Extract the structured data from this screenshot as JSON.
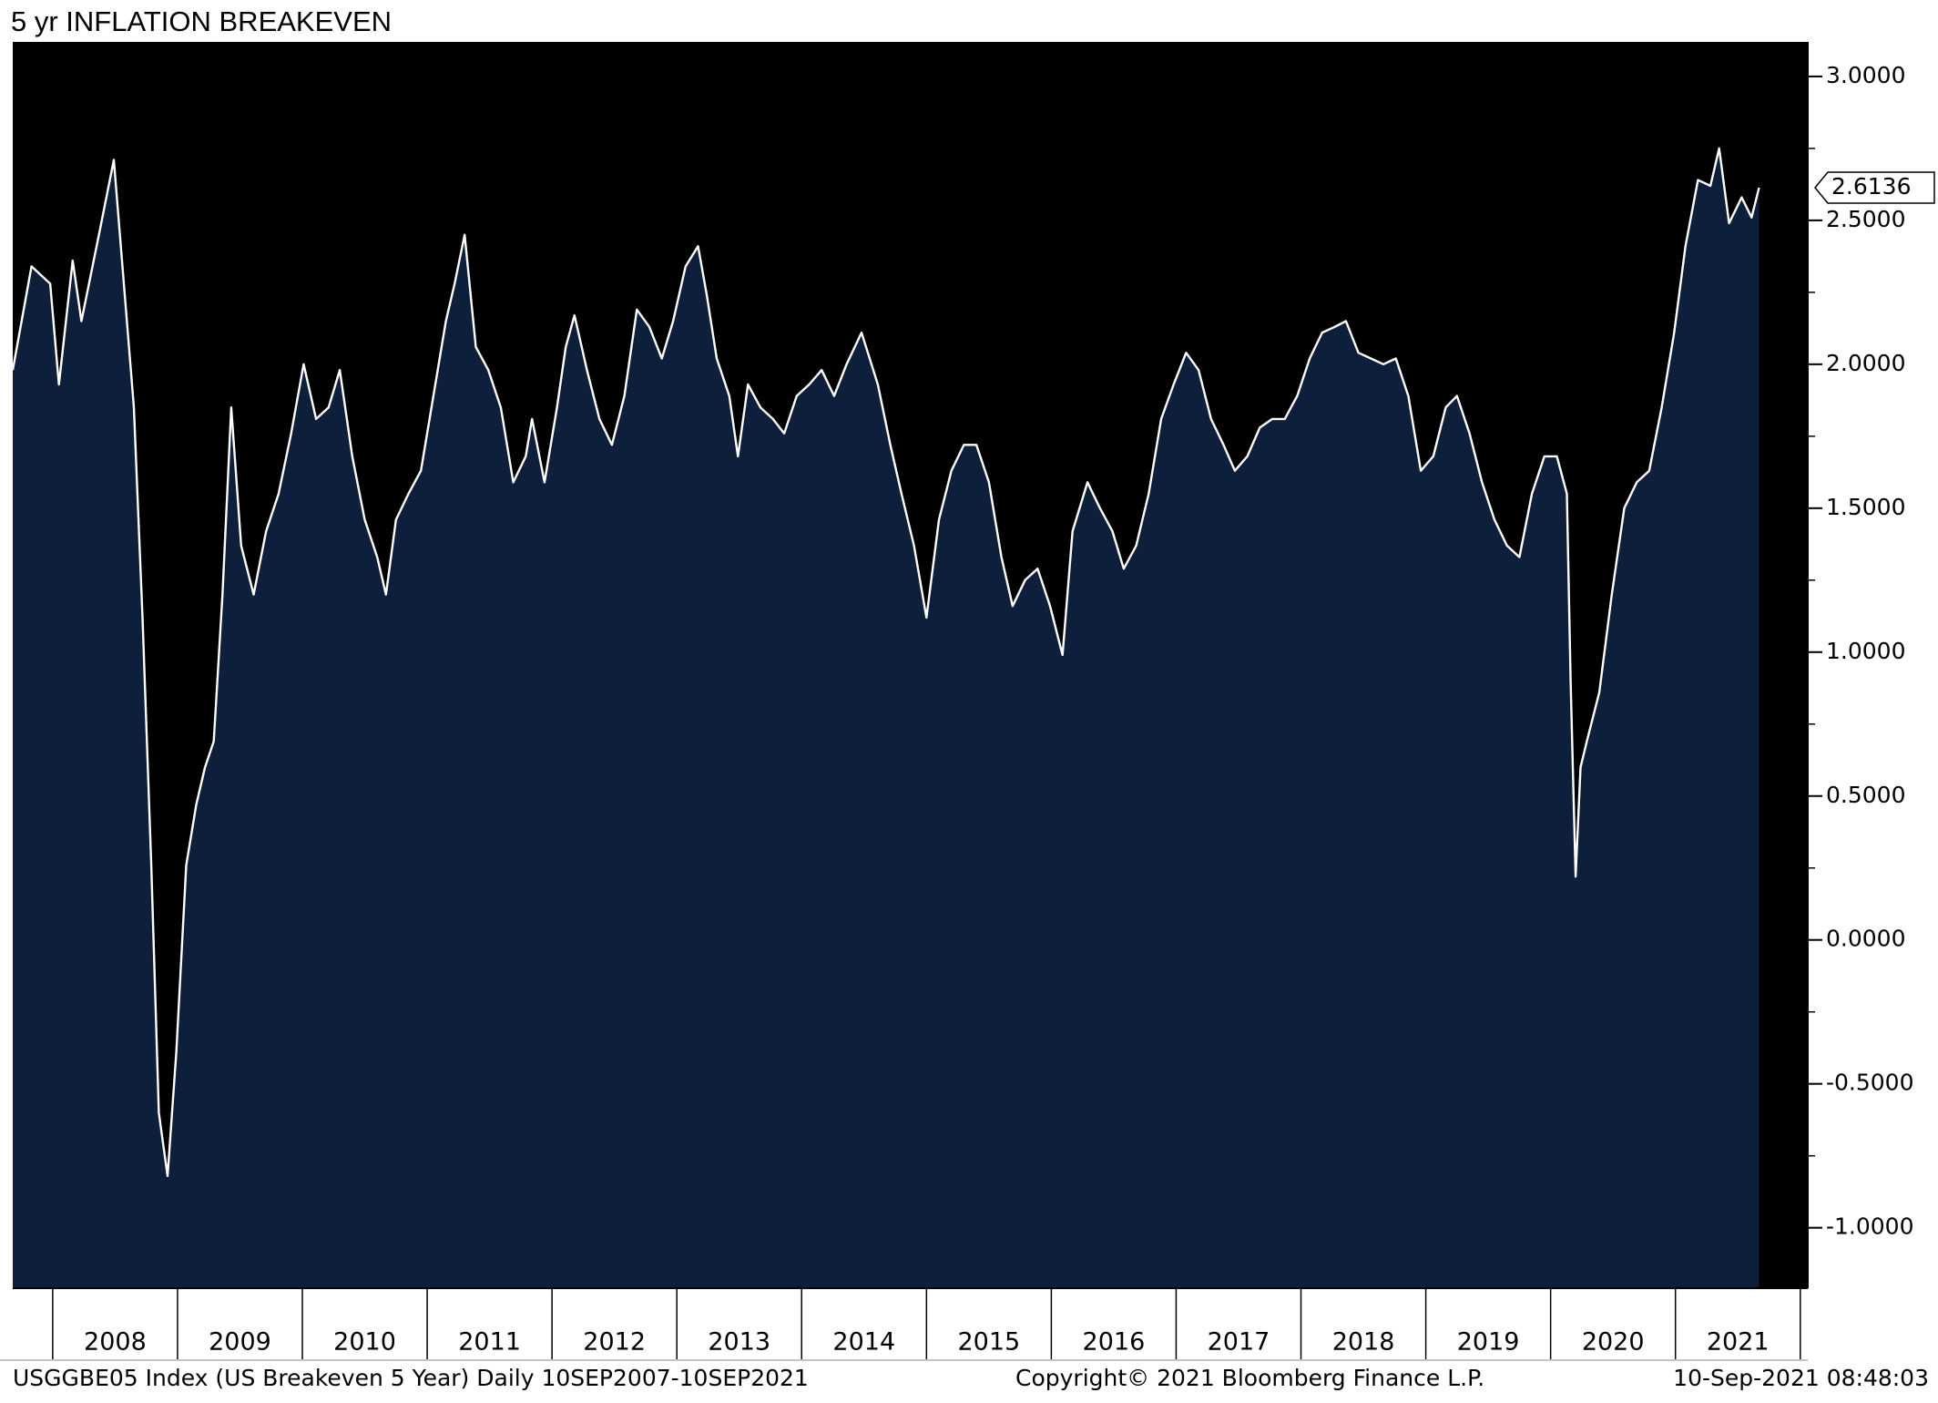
{
  "chart_data": {
    "type": "area",
    "title": "5 yr INFLATION BREAKEVEN",
    "line_color": "#ffffff",
    "fill_color": "#0d1f3a",
    "background": "#000000",
    "x": [
      2007.68,
      2007.83,
      2007.98,
      2008.05,
      2008.16,
      2008.23,
      2008.38,
      2008.49,
      2008.57,
      2008.65,
      2008.72,
      2008.79,
      2008.85,
      2008.92,
      2008.99,
      2009.07,
      2009.15,
      2009.22,
      2009.29,
      2009.36,
      2009.43,
      2009.51,
      2009.61,
      2009.71,
      2009.81,
      2009.91,
      2010.01,
      2010.11,
      2010.21,
      2010.3,
      2010.4,
      2010.5,
      2010.6,
      2010.67,
      2010.75,
      2010.85,
      2010.95,
      2011.05,
      2011.15,
      2011.22,
      2011.3,
      2011.39,
      2011.49,
      2011.59,
      2011.69,
      2011.79,
      2011.84,
      2011.94,
      2012.04,
      2012.11,
      2012.18,
      2012.28,
      2012.38,
      2012.48,
      2012.58,
      2012.68,
      2012.78,
      2012.88,
      2012.97,
      2013.07,
      2013.17,
      2013.24,
      2013.32,
      2013.42,
      2013.49,
      2013.57,
      2013.67,
      2013.77,
      2013.86,
      2013.96,
      2014.06,
      2014.16,
      2014.26,
      2014.36,
      2014.48,
      2014.61,
      2014.71,
      2014.8,
      2014.9,
      2015.0,
      2015.1,
      2015.2,
      2015.3,
      2015.4,
      2015.5,
      2015.6,
      2015.69,
      2015.79,
      2015.89,
      2015.99,
      2016.09,
      2016.17,
      2016.29,
      2016.39,
      2016.49,
      2016.58,
      2016.68,
      2016.78,
      2016.88,
      2016.98,
      2017.08,
      2017.18,
      2017.28,
      2017.38,
      2017.47,
      2017.57,
      2017.67,
      2017.77,
      2017.87,
      2017.97,
      2018.07,
      2018.17,
      2018.27,
      2018.36,
      2018.46,
      2018.56,
      2018.66,
      2018.76,
      2018.86,
      2018.96,
      2019.06,
      2019.16,
      2019.25,
      2019.35,
      2019.45,
      2019.55,
      2019.65,
      2019.75,
      2019.85,
      2019.95,
      2020.05,
      2020.13,
      2020.16,
      2020.2,
      2020.24,
      2020.29,
      2020.39,
      2020.49,
      2020.59,
      2020.69,
      2020.79,
      2020.89,
      2020.99,
      2021.08,
      2021.18,
      2021.28,
      2021.35,
      2021.43,
      2021.53,
      2021.61,
      2021.67
    ],
    "values": [
      1.98,
      2.34,
      2.28,
      1.93,
      2.36,
      2.15,
      2.47,
      2.71,
      2.28,
      1.85,
      1.12,
      0.26,
      -0.6,
      -0.82,
      -0.39,
      0.26,
      0.47,
      0.6,
      0.69,
      1.2,
      1.85,
      1.37,
      1.2,
      1.42,
      1.55,
      1.76,
      2.0,
      1.81,
      1.85,
      1.98,
      1.68,
      1.46,
      1.33,
      1.2,
      1.46,
      1.55,
      1.63,
      1.89,
      2.15,
      2.28,
      2.45,
      2.06,
      1.98,
      1.85,
      1.59,
      1.68,
      1.81,
      1.59,
      1.85,
      2.06,
      2.17,
      1.98,
      1.81,
      1.72,
      1.89,
      2.19,
      2.13,
      2.02,
      2.15,
      2.34,
      2.41,
      2.24,
      2.02,
      1.89,
      1.68,
      1.93,
      1.85,
      1.81,
      1.76,
      1.89,
      1.93,
      1.98,
      1.89,
      2.0,
      2.11,
      1.93,
      1.72,
      1.55,
      1.37,
      1.12,
      1.46,
      1.63,
      1.72,
      1.72,
      1.59,
      1.33,
      1.16,
      1.25,
      1.29,
      1.16,
      0.99,
      1.42,
      1.59,
      1.5,
      1.42,
      1.29,
      1.37,
      1.55,
      1.81,
      1.93,
      2.04,
      1.98,
      1.81,
      1.72,
      1.63,
      1.68,
      1.78,
      1.81,
      1.81,
      1.89,
      2.02,
      2.11,
      2.13,
      2.15,
      2.04,
      2.02,
      2.0,
      2.02,
      1.89,
      1.63,
      1.68,
      1.85,
      1.89,
      1.76,
      1.59,
      1.46,
      1.37,
      1.33,
      1.55,
      1.68,
      1.68,
      1.55,
      0.9,
      0.22,
      0.6,
      0.69,
      0.86,
      1.2,
      1.5,
      1.59,
      1.63,
      1.85,
      2.11,
      2.41,
      2.64,
      2.62,
      2.75,
      2.49,
      2.58,
      2.51,
      2.6136
    ],
    "xlim": [
      2007.68,
      2022.06
    ],
    "x_dividers": [
      2008,
      2009,
      2010,
      2011,
      2012,
      2013,
      2014,
      2015,
      2016,
      2017,
      2018,
      2019,
      2020,
      2021,
      2022
    ],
    "xticks": [
      {
        "value": 2008.5,
        "label": "2008"
      },
      {
        "value": 2009.5,
        "label": "2009"
      },
      {
        "value": 2010.5,
        "label": "2010"
      },
      {
        "value": 2011.5,
        "label": "2011"
      },
      {
        "value": 2012.5,
        "label": "2012"
      },
      {
        "value": 2013.5,
        "label": "2013"
      },
      {
        "value": 2014.5,
        "label": "2014"
      },
      {
        "value": 2015.5,
        "label": "2015"
      },
      {
        "value": 2016.5,
        "label": "2016"
      },
      {
        "value": 2017.5,
        "label": "2017"
      },
      {
        "value": 2018.5,
        "label": "2018"
      },
      {
        "value": 2019.5,
        "label": "2019"
      },
      {
        "value": 2020.5,
        "label": "2020"
      },
      {
        "value": 2021.5,
        "label": "2021"
      }
    ],
    "ylim": [
      -1.21,
      3.12
    ],
    "yticks": [
      {
        "value": 3,
        "label": "3.0000"
      },
      {
        "value": 2.5,
        "label": "2.5000"
      },
      {
        "value": 2,
        "label": "2.0000"
      },
      {
        "value": 1.5,
        "label": "1.5000"
      },
      {
        "value": 1,
        "label": "1.0000"
      },
      {
        "value": 0.5,
        "label": "0.5000"
      },
      {
        "value": 0,
        "label": "0.0000"
      },
      {
        "value": -0.5,
        "label": "-0.5000"
      },
      {
        "value": -1,
        "label": "-1.0000"
      }
    ],
    "yticks_minor": [
      2.75,
      2.25,
      1.75,
      1.25,
      0.75,
      0.25,
      -0.25,
      -0.75
    ],
    "last_price": {
      "value": 2.6136,
      "label": "2.6136"
    },
    "footer": {
      "left": "USGGBE05 Index (US Breakeven 5 Year)  Daily 10SEP2007-10SEP2021",
      "center": "Copyright© 2021 Bloomberg Finance L.P.",
      "right": "10-Sep-2021 08:48:03"
    }
  }
}
